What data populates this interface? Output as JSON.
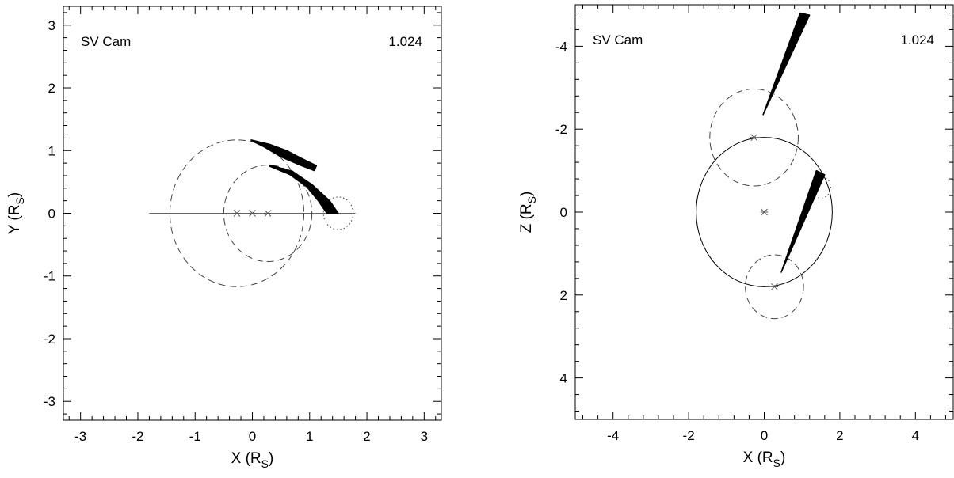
{
  "chart_data": [
    {
      "type": "scatter",
      "panel": "xy",
      "label_left": "SV Cam",
      "label_right": "1.024",
      "xlabel": {
        "base": "X (R",
        "sub": "S",
        "end": ")"
      },
      "ylabel": {
        "base": "Y (R",
        "sub": "S",
        "end": ")"
      },
      "xlim": [
        -3.3,
        3.3
      ],
      "ylim": [
        -3.3,
        3.3
      ],
      "xticks": [
        -3,
        -2,
        -1,
        0,
        1,
        2,
        3
      ],
      "yticks": [
        -3,
        -2,
        -1,
        0,
        1,
        2,
        3
      ],
      "axis_line": {
        "from": [
          -1.8,
          0
        ],
        "to": [
          1.8,
          0
        ]
      },
      "stars": [
        [
          -0.27,
          0
        ],
        [
          0,
          0
        ],
        [
          0.27,
          0
        ]
      ],
      "circles": [
        {
          "cx": -0.27,
          "cy": 0,
          "r": 1.17,
          "style": "dashed"
        },
        {
          "cx": 0.27,
          "cy": 0,
          "r": 0.77,
          "style": "dashed"
        },
        {
          "cx": 1.5,
          "cy": 0,
          "r": 0.26,
          "style": "dotted"
        }
      ],
      "streams": [
        {
          "outer": [
            [
              -0.02,
              1.17
            ],
            [
              0.3,
              1.1
            ],
            [
              0.6,
              1.0
            ],
            [
              0.85,
              0.88
            ],
            [
              1.12,
              0.76
            ]
          ],
          "inner": [
            [
              1.08,
              0.68
            ],
            [
              0.8,
              0.78
            ],
            [
              0.5,
              0.9
            ],
            [
              0.2,
              1.06
            ],
            [
              -0.02,
              1.16
            ]
          ]
        },
        {
          "outer": [
            [
              0.3,
              0.77
            ],
            [
              0.7,
              0.67
            ],
            [
              1.05,
              0.45
            ],
            [
              1.35,
              0.2
            ],
            [
              1.5,
              0.0
            ]
          ],
          "inner": [
            [
              1.3,
              0.0
            ],
            [
              1.15,
              0.2
            ],
            [
              0.95,
              0.42
            ],
            [
              0.65,
              0.62
            ],
            [
              0.3,
              0.75
            ]
          ]
        }
      ]
    },
    {
      "type": "scatter",
      "panel": "xz",
      "label_left": "SV Cam",
      "label_right": "1.024",
      "xlabel": {
        "base": "X (R",
        "sub": "S",
        "end": ")"
      },
      "ylabel": {
        "base": "Z (R",
        "sub": "S",
        "end": ")"
      },
      "xlim": [
        -5,
        5
      ],
      "ylim": [
        5,
        -5
      ],
      "xticks": [
        -4,
        -2,
        0,
        2,
        4
      ],
      "yticks": [
        -4,
        -2,
        0,
        2,
        4
      ],
      "stars": [
        [
          0,
          0
        ],
        [
          -0.27,
          -1.8
        ],
        [
          0.27,
          1.8
        ]
      ],
      "circles": [
        {
          "cx": 0,
          "cy": 0,
          "r": 1.8,
          "style": "solid"
        },
        {
          "cx": -0.27,
          "cy": -1.8,
          "r": 1.17,
          "style": "dashed"
        },
        {
          "cx": 0.27,
          "cy": 1.8,
          "r": 0.77,
          "style": "dashed"
        },
        {
          "cx": 1.5,
          "cy": -0.6,
          "r": 0.26,
          "style": "dotted"
        }
      ],
      "streams": [
        {
          "outer": [
            [
              -0.03,
              -2.35
            ],
            [
              0.95,
              -4.8
            ],
            [
              1.2,
              -4.75
            ]
          ],
          "inner": []
        },
        {
          "outer": [
            [
              0.45,
              1.45
            ],
            [
              1.38,
              -1.0
            ],
            [
              1.6,
              -0.9
            ]
          ],
          "inner": []
        }
      ]
    }
  ]
}
